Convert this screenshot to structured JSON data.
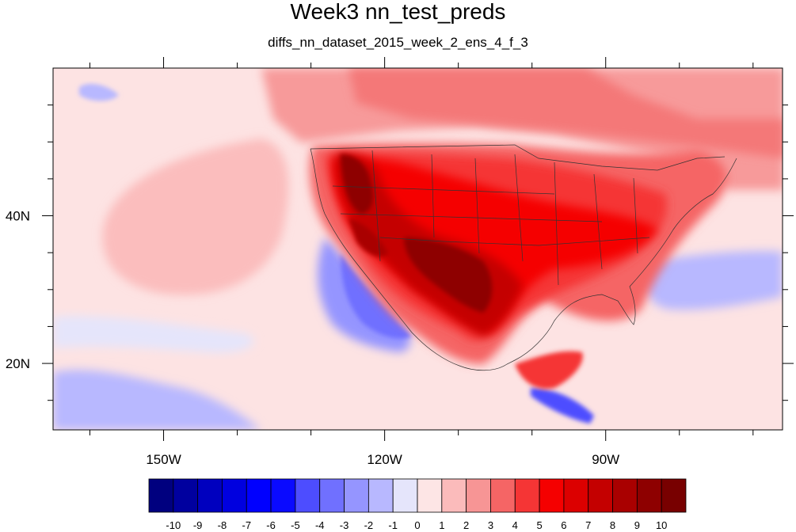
{
  "title": "Week3 nn_test_preds",
  "subtitle": "diffs_nn_dataset_2015_week_2_ens_4_f_3",
  "map": {
    "lon_range": [
      -165,
      -66
    ],
    "lat_range": [
      11,
      60
    ],
    "x_ticks": [
      {
        "lon": -150,
        "label": "150W"
      },
      {
        "lon": -120,
        "label": "120W"
      },
      {
        "lon": -90,
        "label": "90W"
      }
    ],
    "y_ticks": [
      {
        "lat": 40,
        "label": "40N"
      },
      {
        "lat": 20,
        "label": "20N"
      }
    ]
  },
  "colorbar": {
    "labels": [
      "-10",
      "-9",
      "-8",
      "-7",
      "-6",
      "-5",
      "-4",
      "-3",
      "-2",
      "-1",
      "0",
      "1",
      "2",
      "3",
      "4",
      "5",
      "6",
      "7",
      "8",
      "9",
      "10"
    ],
    "colors": [
      "#00007f",
      "#00009f",
      "#0000bf",
      "#0000df",
      "#0000ff",
      "#0a0aff",
      "#4d4dff",
      "#7070ff",
      "#9595ff",
      "#b8b8ff",
      "#e5e5fb",
      "#fde5e5",
      "#fbbbbb",
      "#f79595",
      "#f56565",
      "#f53535",
      "#f50000",
      "#dc0000",
      "#c40000",
      "#a90000",
      "#8e0000",
      "#780000"
    ]
  }
}
